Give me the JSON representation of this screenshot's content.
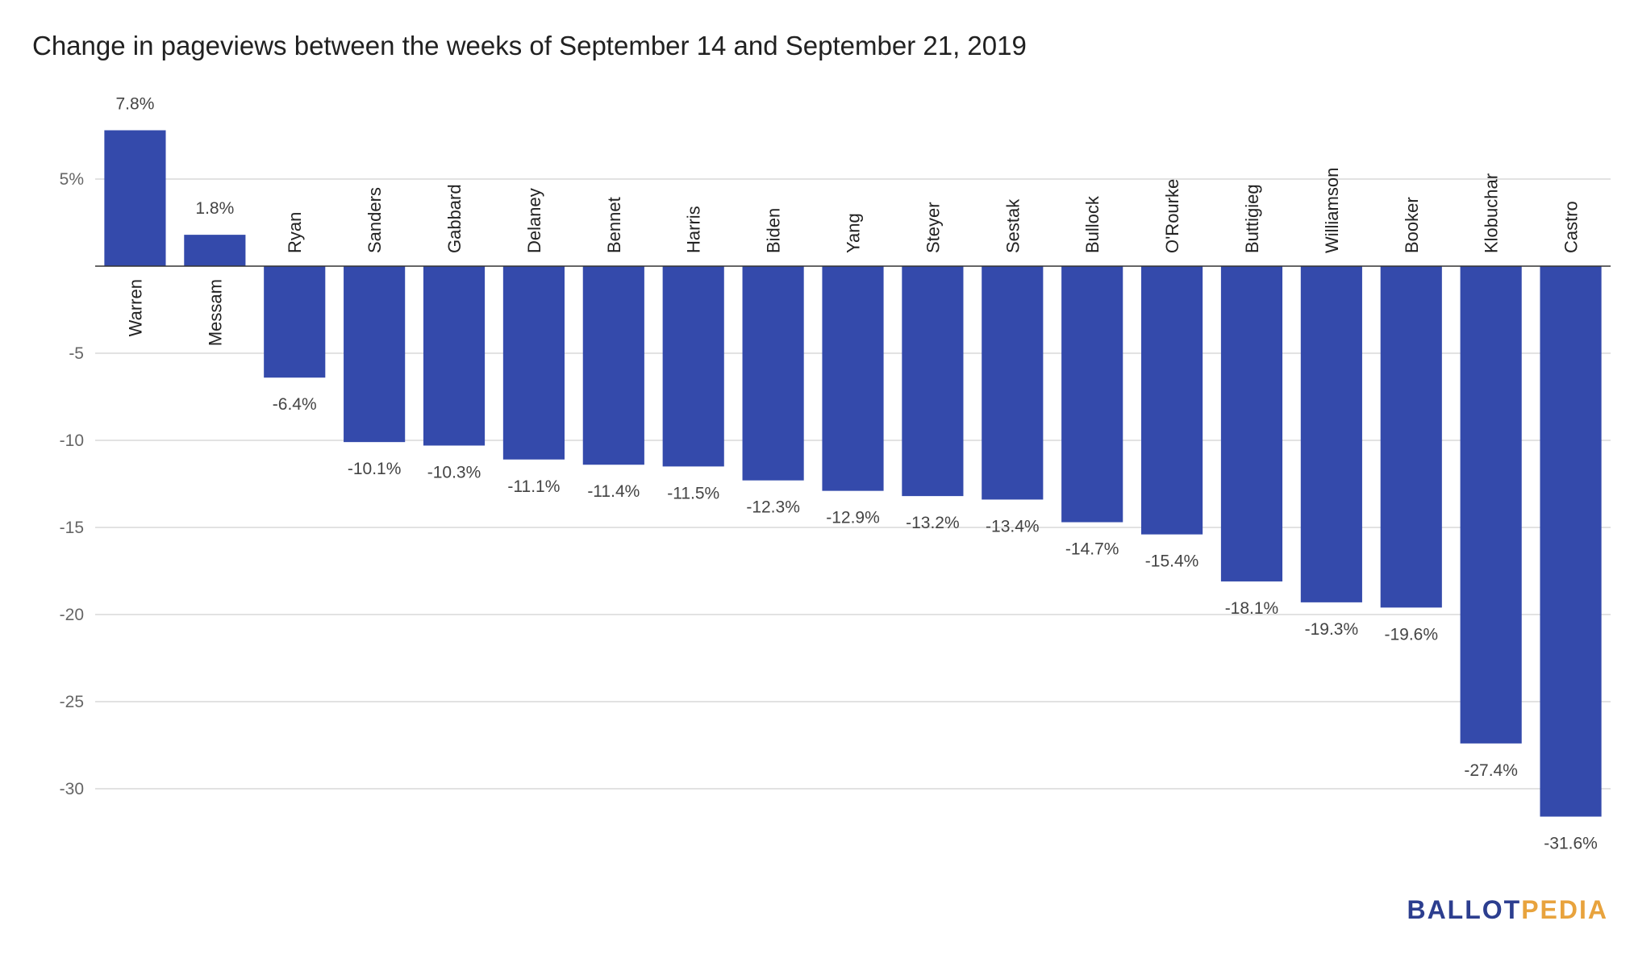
{
  "chart_data": {
    "type": "bar",
    "title": "Change in pageviews between the weeks of September 14 and September 21, 2019",
    "xlabel": "",
    "ylabel": "",
    "ylim": [
      -35,
      10
    ],
    "ytick_values": [
      5,
      0,
      -5,
      -10,
      -15,
      -20,
      -25,
      -30
    ],
    "ytick_labels": [
      "5%",
      "",
      "-5",
      "-10",
      "-15",
      "-20",
      "-25",
      "-30"
    ],
    "grid": true,
    "categories": [
      "Warren",
      "Messam",
      "Ryan",
      "Sanders",
      "Gabbard",
      "Delaney",
      "Bennet",
      "Harris",
      "Biden",
      "Yang",
      "Steyer",
      "Sestak",
      "Bullock",
      "O'Rourke",
      "Buttigieg",
      "Williamson",
      "Booker",
      "Klobuchar",
      "Castro"
    ],
    "values": [
      7.8,
      1.8,
      -6.4,
      -10.1,
      -10.3,
      -11.1,
      -11.4,
      -11.5,
      -12.3,
      -12.9,
      -13.2,
      -13.4,
      -14.7,
      -15.4,
      -18.1,
      -19.3,
      -19.6,
      -27.4,
      -31.6
    ],
    "data_labels": [
      "7.8%",
      "1.8%",
      "-6.4%",
      "-10.1%",
      "-10.3%",
      "-11.1%",
      "-11.4%",
      "-11.5%",
      "-12.3%",
      "-12.9%",
      "-13.2%",
      "-13.4%",
      "-14.7%",
      "-15.4%",
      "-18.1%",
      "-19.3%",
      "-19.6%",
      "-27.4%",
      "-31.6%"
    ],
    "bar_color": "#344aab"
  },
  "branding": {
    "part1": "BALLOT",
    "part2": "PEDIA",
    "color1": "#2c3e8f",
    "color2": "#e8a33d"
  }
}
